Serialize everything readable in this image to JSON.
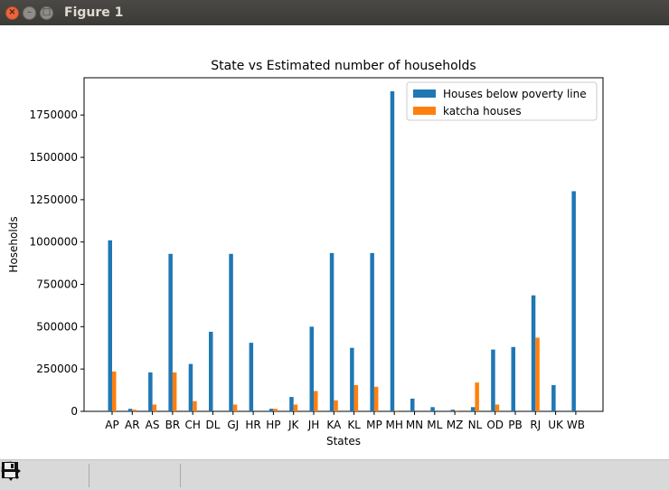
{
  "window": {
    "title": "Figure 1",
    "close_icon": "close-icon",
    "minimize_icon": "minimize-icon",
    "maximize_icon": "maximize-icon"
  },
  "toolbar": {
    "buttons": [
      "home-icon",
      "back-arrow-icon",
      "forward-arrow-icon",
      "pan-icon",
      "zoom-icon",
      "configure-subplots-icon",
      "save-icon"
    ]
  },
  "colors": {
    "series1": "#1f77b4",
    "series2": "#ff7f0e"
  },
  "chart_data": {
    "type": "bar",
    "title": "State vs Estimated number of households",
    "xlabel": "States",
    "ylabel": "Hoseholds",
    "ylim": [
      0,
      1970000
    ],
    "yticks": [
      0,
      250000,
      500000,
      750000,
      1000000,
      1250000,
      1500000,
      1750000
    ],
    "ytick_labels": [
      "0",
      "250000",
      "500000",
      "750000",
      "1000000",
      "1250000",
      "1500000",
      "1750000"
    ],
    "legend_position": "top-right",
    "grid": false,
    "categories": [
      "AP",
      "AR",
      "AS",
      "BR",
      "CH",
      "DL",
      "GJ",
      "HR",
      "HP",
      "JK",
      "JH",
      "KA",
      "KL",
      "MP",
      "MH",
      "MN",
      "ML",
      "MZ",
      "NL",
      "OD",
      "PB",
      "RJ",
      "UK",
      "WB"
    ],
    "series": [
      {
        "name": "Houses below poverty line",
        "values": [
          1010000,
          15000,
          230000,
          930000,
          280000,
          470000,
          930000,
          405000,
          15000,
          85000,
          500000,
          935000,
          375000,
          935000,
          1890000,
          75000,
          25000,
          10000,
          25000,
          365000,
          380000,
          685000,
          155000,
          1300000
        ]
      },
      {
        "name": " katcha houses",
        "values": [
          235000,
          10000,
          40000,
          230000,
          60000,
          0,
          40000,
          0,
          15000,
          40000,
          120000,
          65000,
          155000,
          145000,
          5000,
          0,
          0,
          5000,
          170000,
          40000,
          0,
          435000,
          0,
          0
        ]
      }
    ]
  }
}
